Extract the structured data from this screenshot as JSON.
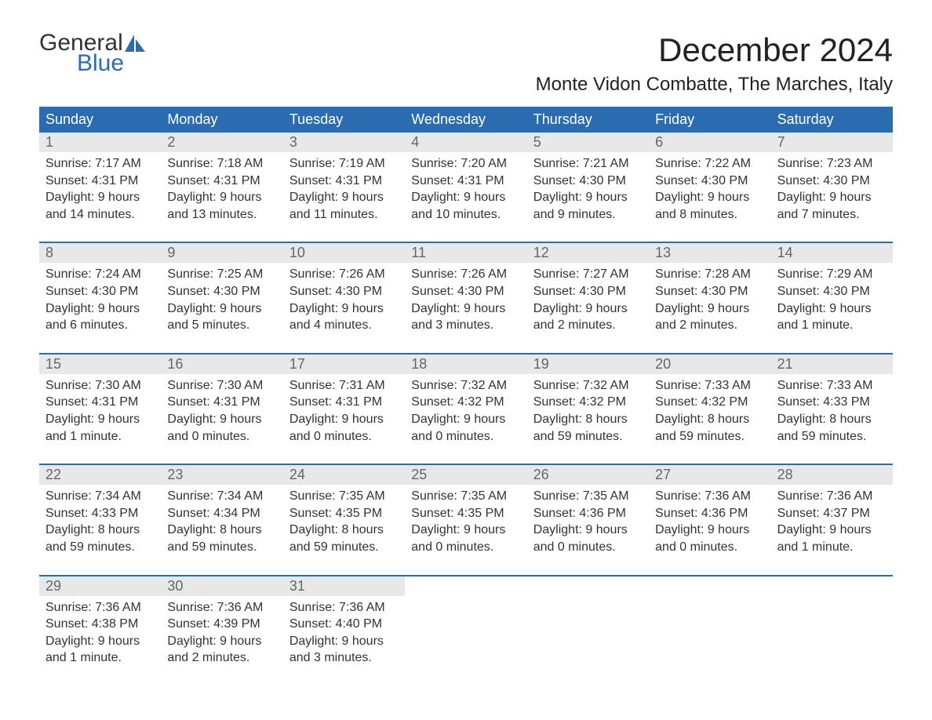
{
  "logo": {
    "line1": "General",
    "line2": "Blue",
    "sail_color": "#2b6cb0"
  },
  "title": "December 2024",
  "location": "Monte Vidon Combatte, The Marches, Italy",
  "colors": {
    "header_bg": "#2b6cb0",
    "header_text": "#ffffff",
    "daynum_bg": "#e8e8e8",
    "daynum_text": "#666666",
    "body_text": "#333333",
    "week_border": "#2b6cb0"
  },
  "daysOfWeek": [
    "Sunday",
    "Monday",
    "Tuesday",
    "Wednesday",
    "Thursday",
    "Friday",
    "Saturday"
  ],
  "weeks": [
    [
      {
        "n": "1",
        "sunrise": "Sunrise: 7:17 AM",
        "sunset": "Sunset: 4:31 PM",
        "d1": "Daylight: 9 hours",
        "d2": "and 14 minutes."
      },
      {
        "n": "2",
        "sunrise": "Sunrise: 7:18 AM",
        "sunset": "Sunset: 4:31 PM",
        "d1": "Daylight: 9 hours",
        "d2": "and 13 minutes."
      },
      {
        "n": "3",
        "sunrise": "Sunrise: 7:19 AM",
        "sunset": "Sunset: 4:31 PM",
        "d1": "Daylight: 9 hours",
        "d2": "and 11 minutes."
      },
      {
        "n": "4",
        "sunrise": "Sunrise: 7:20 AM",
        "sunset": "Sunset: 4:31 PM",
        "d1": "Daylight: 9 hours",
        "d2": "and 10 minutes."
      },
      {
        "n": "5",
        "sunrise": "Sunrise: 7:21 AM",
        "sunset": "Sunset: 4:30 PM",
        "d1": "Daylight: 9 hours",
        "d2": "and 9 minutes."
      },
      {
        "n": "6",
        "sunrise": "Sunrise: 7:22 AM",
        "sunset": "Sunset: 4:30 PM",
        "d1": "Daylight: 9 hours",
        "d2": "and 8 minutes."
      },
      {
        "n": "7",
        "sunrise": "Sunrise: 7:23 AM",
        "sunset": "Sunset: 4:30 PM",
        "d1": "Daylight: 9 hours",
        "d2": "and 7 minutes."
      }
    ],
    [
      {
        "n": "8",
        "sunrise": "Sunrise: 7:24 AM",
        "sunset": "Sunset: 4:30 PM",
        "d1": "Daylight: 9 hours",
        "d2": "and 6 minutes."
      },
      {
        "n": "9",
        "sunrise": "Sunrise: 7:25 AM",
        "sunset": "Sunset: 4:30 PM",
        "d1": "Daylight: 9 hours",
        "d2": "and 5 minutes."
      },
      {
        "n": "10",
        "sunrise": "Sunrise: 7:26 AM",
        "sunset": "Sunset: 4:30 PM",
        "d1": "Daylight: 9 hours",
        "d2": "and 4 minutes."
      },
      {
        "n": "11",
        "sunrise": "Sunrise: 7:26 AM",
        "sunset": "Sunset: 4:30 PM",
        "d1": "Daylight: 9 hours",
        "d2": "and 3 minutes."
      },
      {
        "n": "12",
        "sunrise": "Sunrise: 7:27 AM",
        "sunset": "Sunset: 4:30 PM",
        "d1": "Daylight: 9 hours",
        "d2": "and 2 minutes."
      },
      {
        "n": "13",
        "sunrise": "Sunrise: 7:28 AM",
        "sunset": "Sunset: 4:30 PM",
        "d1": "Daylight: 9 hours",
        "d2": "and 2 minutes."
      },
      {
        "n": "14",
        "sunrise": "Sunrise: 7:29 AM",
        "sunset": "Sunset: 4:30 PM",
        "d1": "Daylight: 9 hours",
        "d2": "and 1 minute."
      }
    ],
    [
      {
        "n": "15",
        "sunrise": "Sunrise: 7:30 AM",
        "sunset": "Sunset: 4:31 PM",
        "d1": "Daylight: 9 hours",
        "d2": "and 1 minute."
      },
      {
        "n": "16",
        "sunrise": "Sunrise: 7:30 AM",
        "sunset": "Sunset: 4:31 PM",
        "d1": "Daylight: 9 hours",
        "d2": "and 0 minutes."
      },
      {
        "n": "17",
        "sunrise": "Sunrise: 7:31 AM",
        "sunset": "Sunset: 4:31 PM",
        "d1": "Daylight: 9 hours",
        "d2": "and 0 minutes."
      },
      {
        "n": "18",
        "sunrise": "Sunrise: 7:32 AM",
        "sunset": "Sunset: 4:32 PM",
        "d1": "Daylight: 9 hours",
        "d2": "and 0 minutes."
      },
      {
        "n": "19",
        "sunrise": "Sunrise: 7:32 AM",
        "sunset": "Sunset: 4:32 PM",
        "d1": "Daylight: 8 hours",
        "d2": "and 59 minutes."
      },
      {
        "n": "20",
        "sunrise": "Sunrise: 7:33 AM",
        "sunset": "Sunset: 4:32 PM",
        "d1": "Daylight: 8 hours",
        "d2": "and 59 minutes."
      },
      {
        "n": "21",
        "sunrise": "Sunrise: 7:33 AM",
        "sunset": "Sunset: 4:33 PM",
        "d1": "Daylight: 8 hours",
        "d2": "and 59 minutes."
      }
    ],
    [
      {
        "n": "22",
        "sunrise": "Sunrise: 7:34 AM",
        "sunset": "Sunset: 4:33 PM",
        "d1": "Daylight: 8 hours",
        "d2": "and 59 minutes."
      },
      {
        "n": "23",
        "sunrise": "Sunrise: 7:34 AM",
        "sunset": "Sunset: 4:34 PM",
        "d1": "Daylight: 8 hours",
        "d2": "and 59 minutes."
      },
      {
        "n": "24",
        "sunrise": "Sunrise: 7:35 AM",
        "sunset": "Sunset: 4:35 PM",
        "d1": "Daylight: 8 hours",
        "d2": "and 59 minutes."
      },
      {
        "n": "25",
        "sunrise": "Sunrise: 7:35 AM",
        "sunset": "Sunset: 4:35 PM",
        "d1": "Daylight: 9 hours",
        "d2": "and 0 minutes."
      },
      {
        "n": "26",
        "sunrise": "Sunrise: 7:35 AM",
        "sunset": "Sunset: 4:36 PM",
        "d1": "Daylight: 9 hours",
        "d2": "and 0 minutes."
      },
      {
        "n": "27",
        "sunrise": "Sunrise: 7:36 AM",
        "sunset": "Sunset: 4:36 PM",
        "d1": "Daylight: 9 hours",
        "d2": "and 0 minutes."
      },
      {
        "n": "28",
        "sunrise": "Sunrise: 7:36 AM",
        "sunset": "Sunset: 4:37 PM",
        "d1": "Daylight: 9 hours",
        "d2": "and 1 minute."
      }
    ],
    [
      {
        "n": "29",
        "sunrise": "Sunrise: 7:36 AM",
        "sunset": "Sunset: 4:38 PM",
        "d1": "Daylight: 9 hours",
        "d2": "and 1 minute."
      },
      {
        "n": "30",
        "sunrise": "Sunrise: 7:36 AM",
        "sunset": "Sunset: 4:39 PM",
        "d1": "Daylight: 9 hours",
        "d2": "and 2 minutes."
      },
      {
        "n": "31",
        "sunrise": "Sunrise: 7:36 AM",
        "sunset": "Sunset: 4:40 PM",
        "d1": "Daylight: 9 hours",
        "d2": "and 3 minutes."
      },
      null,
      null,
      null,
      null
    ]
  ]
}
